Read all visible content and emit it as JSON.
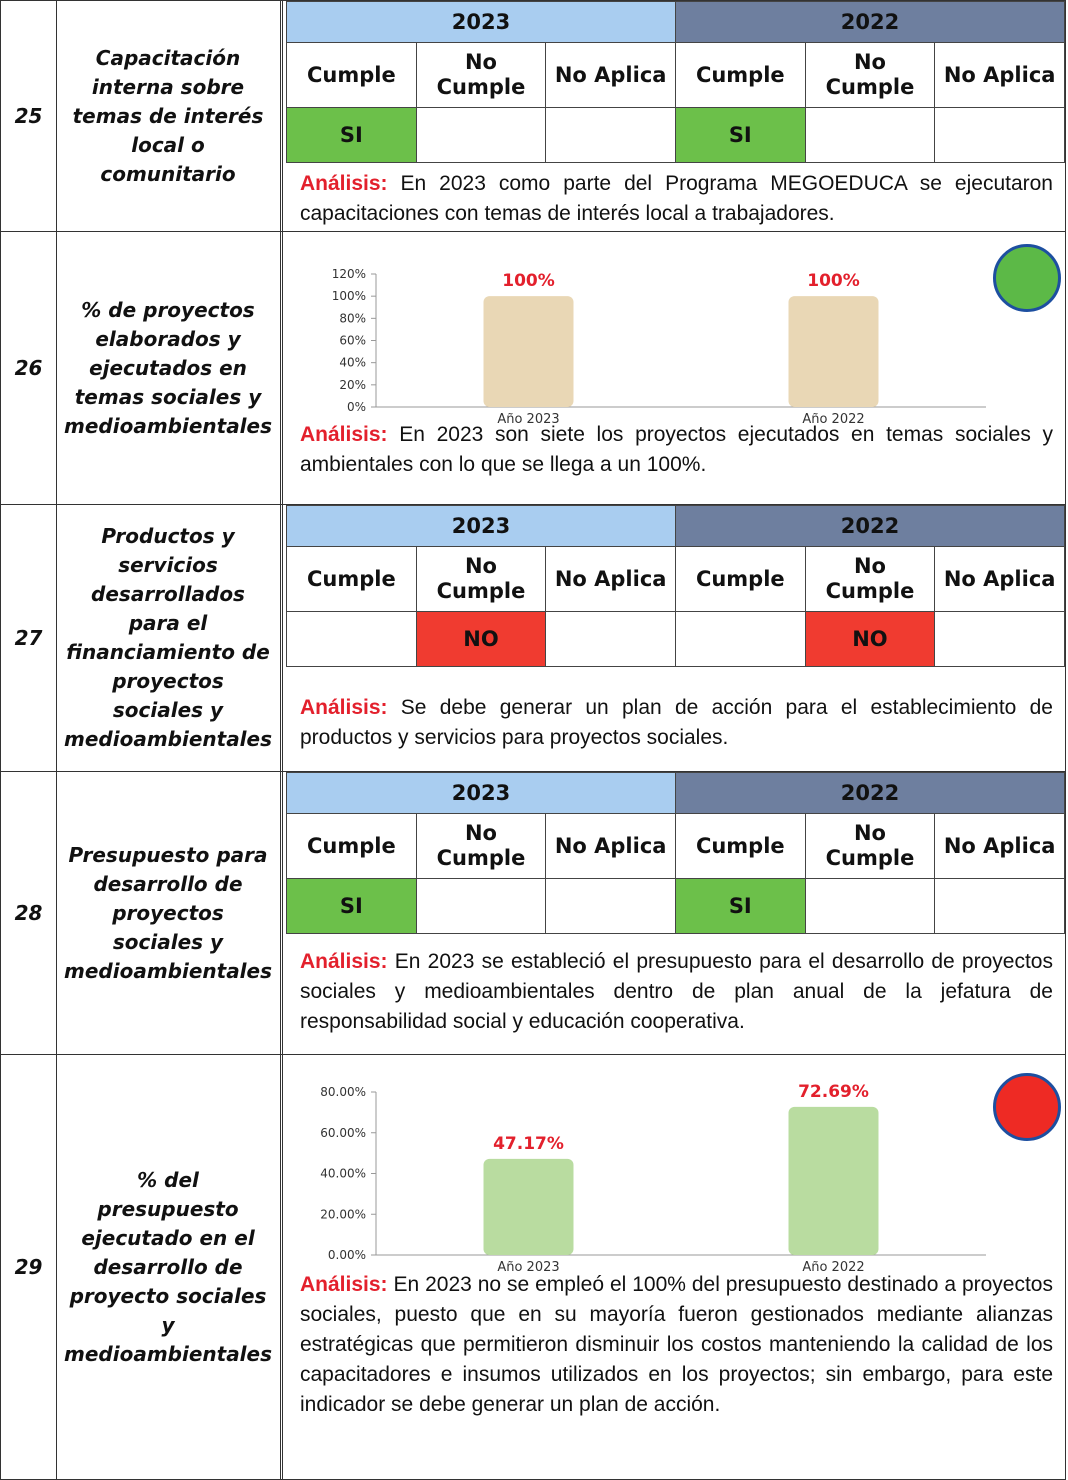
{
  "analysis_label": "Análisis:",
  "rows": [
    {
      "number": "25",
      "indicator": "Capacitación interna sobre temas de interés local o comunitario",
      "table": {
        "headers": [
          "Cumple",
          "No Cumple",
          "No Aplica"
        ],
        "years": [
          {
            "year": "2023",
            "color": "#a9cdf0",
            "cells": [
              "SI",
              null,
              null
            ],
            "result_color": "#6cc04a"
          },
          {
            "year": "2022",
            "color": "#6e7f9f",
            "cells": [
              "SI",
              null,
              null
            ],
            "result_color": "#6cc04a"
          }
        ]
      },
      "analysis": "En 2023 como parte del Programa MEGOEDUCA se ejecutaron capacitaciones con temas de interés local a trabajadores."
    },
    {
      "number": "26",
      "indicator": "% de proyectos elaborados y ejecutados en temas sociales y medioambientales",
      "chart": {
        "type": "bar",
        "categories": [
          "Año 2023",
          "Año 2022"
        ],
        "values": [
          100,
          100
        ],
        "value_labels": [
          "100%",
          "100%"
        ],
        "color": "#e9d7b5",
        "ylim": [
          0,
          120
        ],
        "yticks": [
          {
            "value": 0,
            "label": "0%"
          },
          {
            "value": 20,
            "label": "20%"
          },
          {
            "value": 40,
            "label": "40%"
          },
          {
            "value": 60,
            "label": "60%"
          },
          {
            "value": 80,
            "label": "80%"
          },
          {
            "value": 100,
            "label": "100%"
          },
          {
            "value": 120,
            "label": "120%"
          }
        ],
        "status_color": "#5cb947"
      },
      "analysis": "En 2023 son siete los proyectos ejecutados en temas sociales y ambientales con lo que se llega a un 100%."
    },
    {
      "number": "27",
      "indicator": "Productos y servicios desarrollados para el financiamiento de proyectos sociales y medioambientales",
      "table": {
        "headers": [
          "Cumple",
          "No Cumple",
          "No Aplica"
        ],
        "years": [
          {
            "year": "2023",
            "color": "#a9cdf0",
            "cells": [
              null,
              "NO",
              null
            ],
            "result_color": "#f03b30"
          },
          {
            "year": "2022",
            "color": "#6e7f9f",
            "cells": [
              null,
              "NO",
              null
            ],
            "result_color": "#f03b30"
          }
        ]
      },
      "analysis": "Se debe generar un plan de acción para el establecimiento de productos y servicios para proyectos sociales."
    },
    {
      "number": "28",
      "indicator": "Presupuesto para desarrollo de proyectos sociales y medioambientales",
      "table": {
        "headers": [
          "Cumple",
          "No Cumple",
          "No Aplica"
        ],
        "years": [
          {
            "year": "2023",
            "color": "#a9cdf0",
            "cells": [
              "SI",
              null,
              null
            ],
            "result_color": "#6cc04a"
          },
          {
            "year": "2022",
            "color": "#6e7f9f",
            "cells": [
              "SI",
              null,
              null
            ],
            "result_color": "#6cc04a"
          }
        ]
      },
      "analysis": "En 2023 se estableció el presupuesto para el desarrollo de proyectos sociales y medioambientales dentro de plan anual de la jefatura de responsabilidad social y educación cooperativa."
    },
    {
      "number": "29",
      "indicator": "% del presupuesto ejecutado en el desarrollo de proyecto sociales y medioambientales",
      "chart": {
        "type": "bar",
        "categories": [
          "Año 2023",
          "Año 2022"
        ],
        "values": [
          47.17,
          72.69
        ],
        "value_labels": [
          "47.17%",
          "72.69%"
        ],
        "color": "#b9dca0",
        "ylim": [
          0,
          80
        ],
        "yticks": [
          {
            "value": 0,
            "label": "0.00%"
          },
          {
            "value": 20,
            "label": "20.00%"
          },
          {
            "value": 40,
            "label": "40.00%"
          },
          {
            "value": 60,
            "label": "60.00%"
          },
          {
            "value": 80,
            "label": "80.00%"
          }
        ],
        "status_color": "#ee2a24"
      },
      "analysis": "En 2023 no se empleó el 100% del presupuesto destinado a proyectos sociales, puesto que en su mayoría fueron gestionados mediante alianzas estratégicas que permitieron disminuir los costos manteniendo la calidad de los capacitadores e insumos utilizados en los proyectos; sin embargo, para este indicador se debe generar un plan de acción."
    }
  ]
}
